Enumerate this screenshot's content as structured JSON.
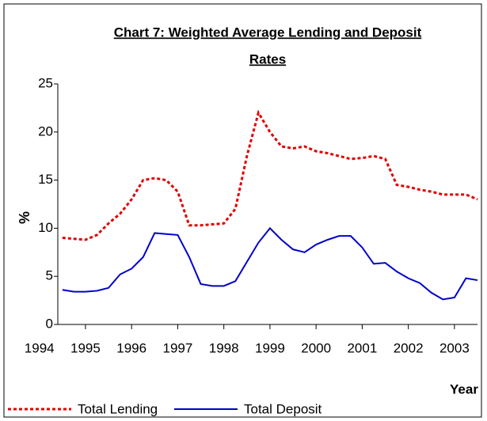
{
  "chart_data": {
    "type": "line",
    "title": [
      "Chart 7: Weighted Average Lending and Deposit",
      "Rates"
    ],
    "y_label": "%",
    "x_label": "Year",
    "x": [
      1994.5,
      1994.75,
      1995,
      1995.25,
      1995.5,
      1995.75,
      1996,
      1996.25,
      1996.5,
      1996.75,
      1997,
      1997.25,
      1997.5,
      1997.75,
      1998,
      1998.25,
      1998.5,
      1998.75,
      1999,
      1999.25,
      1999.5,
      1999.75,
      2000,
      2000.25,
      2000.5,
      2000.75,
      2001,
      2001.25,
      2001.5,
      2001.75,
      2002,
      2002.25,
      2002.5,
      2002.75,
      2003,
      2003.25,
      2003.5
    ],
    "series": [
      {
        "name": "Total Lending",
        "color": "#e00000",
        "dash": true,
        "values": [
          9.0,
          8.9,
          8.8,
          9.3,
          10.5,
          11.5,
          13.0,
          15.0,
          15.2,
          15.0,
          13.8,
          10.3,
          10.3,
          10.4,
          10.5,
          12.0,
          17.5,
          22.0,
          20.0,
          18.5,
          18.3,
          18.5,
          18.0,
          17.8,
          17.5,
          17.2,
          17.3,
          17.5,
          17.2,
          14.5,
          14.3,
          14.0,
          13.8,
          13.5,
          13.5,
          13.5,
          13.0
        ]
      },
      {
        "name": "Total Deposit",
        "color": "#0000cc",
        "dash": false,
        "values": [
          3.6,
          3.4,
          3.4,
          3.5,
          3.8,
          5.2,
          5.8,
          7.0,
          9.5,
          9.4,
          9.3,
          7.0,
          4.2,
          4.0,
          4.0,
          4.5,
          6.5,
          8.5,
          10.0,
          8.8,
          7.8,
          7.5,
          8.3,
          8.8,
          9.2,
          9.2,
          8.0,
          6.3,
          6.4,
          5.5,
          4.8,
          4.3,
          3.3,
          2.6,
          2.8,
          4.8,
          4.6
        ]
      }
    ],
    "xlim": [
      1994.4,
      2003.5
    ],
    "xticks": [
      1994,
      1995,
      1996,
      1997,
      1998,
      1999,
      2000,
      2001,
      2002,
      2003
    ],
    "ylim": [
      0,
      25
    ],
    "yticks": [
      0,
      5,
      10,
      15,
      20,
      25
    ],
    "grid": false
  }
}
